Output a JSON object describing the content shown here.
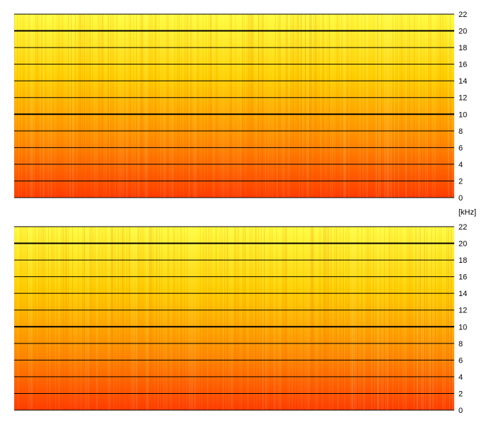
{
  "chart_data": [
    {
      "type": "heatmap",
      "title": "",
      "xlabel": "",
      "ylabel": "",
      "ylim": [
        0,
        22
      ],
      "yticks": [
        0,
        2,
        4,
        6,
        8,
        10,
        12,
        14,
        16,
        18,
        20,
        22
      ],
      "emphasized_gridlines": [
        10,
        20
      ],
      "grid": true,
      "colormap": [
        "#ff3a00",
        "#ff8a00",
        "#ffd000",
        "#fffd40"
      ]
    },
    {
      "type": "heatmap",
      "title": "",
      "xlabel": "",
      "ylabel": "",
      "ylim": [
        0,
        22
      ],
      "yticks": [
        0,
        2,
        4,
        6,
        8,
        10,
        12,
        14,
        16,
        18,
        20,
        22
      ],
      "emphasized_gridlines": [
        10,
        20
      ],
      "grid": true,
      "colormap": [
        "#ff3a00",
        "#ff8a00",
        "#ffd000",
        "#fffd40"
      ]
    }
  ],
  "unit_label": "[kHz]"
}
